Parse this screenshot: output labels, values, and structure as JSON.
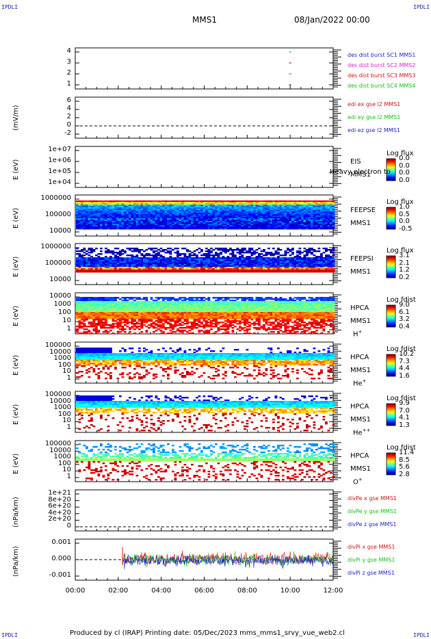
{
  "corner_left": "IPDLI",
  "corner_right": "IPDLI",
  "header": {
    "spacecraft": "MMS1",
    "date": "08/Jan/2022 00:00"
  },
  "footer": {
    "text": "Produced by cl (IRAP)    Printing date: 05/Dec/2023    mms_mms1_srvy_vue_web2.cl"
  },
  "colors": {
    "blue": "#1a1ad0",
    "magenta": "#e020e0",
    "red": "#d01010",
    "green": "#10c010"
  },
  "chart_data": [
    {
      "type": "line",
      "panel": "burst",
      "ylabel": "",
      "yticks": [
        "4",
        "3",
        "2",
        "1"
      ],
      "legend": [
        {
          "name": "des dist burst SC1 MMS1",
          "color": "blue"
        },
        {
          "name": "des dist burst SC2 MMS2",
          "color": "magenta"
        },
        {
          "name": "des dist burst SC3 MMS3",
          "color": "red"
        },
        {
          "name": "des dist burst SC4 MMS4",
          "color": "green"
        }
      ],
      "series": [
        {
          "name": "des dist burst SC4 MMS4",
          "y": 4,
          "x": [
            9.95,
            10.05
          ]
        },
        {
          "name": "des dist burst SC3 MMS3",
          "y": 3,
          "x": [
            9.95,
            10.05
          ]
        },
        {
          "name": "des dist burst SC2 MMS2",
          "y": 2,
          "x": [
            9.95,
            10.05
          ]
        },
        {
          "name": "des dist burst SC1 MMS1",
          "y": 1,
          "x": [
            9.95,
            10.05
          ]
        }
      ]
    },
    {
      "type": "line",
      "panel": "edi",
      "ylabel": "(mV/m)",
      "yticks": [
        "6",
        "4",
        "2",
        "0",
        "-2"
      ],
      "legend": [
        {
          "name": "edi ex gse l2 MMS1",
          "color": "red"
        },
        {
          "name": "edi ey gse l2 MMS1",
          "color": "green"
        },
        {
          "name": "edi ez gse l2 MMS1",
          "color": "blue"
        }
      ]
    },
    {
      "type": "heatmap",
      "panel": "eis",
      "ylabel": "E (eV)",
      "yticks": [
        "1e+07",
        "1e+06",
        "1e+05",
        "1e+04"
      ],
      "labels": [
        "EIS",
        "MMS1"
      ],
      "overlay": "Heavy electron to",
      "colorbar": {
        "title": "Log flux",
        "values": [
          "0.0",
          "0.0",
          "0.0",
          "0.0"
        ]
      }
    },
    {
      "type": "heatmap",
      "panel": "feepse",
      "ylabel": "E (eV)",
      "yticks": [
        "1000000",
        "100000",
        "10000"
      ],
      "labels": [
        "FEEPSE",
        "MMS1"
      ],
      "colorbar": {
        "title": "Log flux",
        "values": [
          "1.0",
          "0.5",
          "0.0",
          "-0.5"
        ]
      }
    },
    {
      "type": "heatmap",
      "panel": "feepsi",
      "ylabel": "E (eV)",
      "yticks": [
        "1000000",
        "100000",
        "10000"
      ],
      "labels": [
        "FEEPSI",
        "MMS1"
      ],
      "colorbar": {
        "title": "Log flux",
        "values": [
          "3.1",
          "2.1",
          "1.2",
          "0.2"
        ]
      }
    },
    {
      "type": "heatmap",
      "panel": "hpca-h",
      "ylabel": "E (eV)",
      "yticks": [
        "10000",
        "1000",
        "100",
        "10",
        "1"
      ],
      "labels": [
        "HPCA",
        "MMS1",
        "H"
      ],
      "species_sup": "+",
      "colorbar": {
        "title": "Log fdist",
        "values": [
          "9.0",
          "6.1",
          "3.2",
          "0.4"
        ]
      }
    },
    {
      "type": "heatmap",
      "panel": "hpca-he",
      "ylabel": "E (eV)",
      "yticks": [
        "100000",
        "10000",
        "1000",
        "100",
        "10",
        "1"
      ],
      "labels": [
        "HPCA",
        "MMS1",
        "He"
      ],
      "species_sup": "+",
      "colorbar": {
        "title": "Log fdist",
        "values": [
          "10.2",
          "7.3",
          "4.4",
          "1.6"
        ]
      }
    },
    {
      "type": "heatmap",
      "panel": "hpca-hepp",
      "ylabel": "E (eV)",
      "yticks": [
        "100000",
        "10000",
        "1000",
        "100",
        "10",
        "1"
      ],
      "labels": [
        "HPCA",
        "MMS1",
        "He"
      ],
      "species_sup": "++",
      "colorbar": {
        "title": "Log fdist",
        "values": [
          "9.9",
          "7.0",
          "4.1",
          "1.3"
        ]
      }
    },
    {
      "type": "heatmap",
      "panel": "hpca-o",
      "ylabel": "E (eV)",
      "yticks": [
        "100000",
        "10000",
        "1000",
        "100",
        "10",
        "1"
      ],
      "labels": [
        "HPCA",
        "MMS1",
        "O"
      ],
      "species_sup": "+",
      "colorbar": {
        "title": "Log fdist",
        "values": [
          "11.4",
          "8.5",
          "5.6",
          "2.8"
        ]
      }
    },
    {
      "type": "line",
      "panel": "divpe",
      "ylabel": "(nPa/km)",
      "yticks": [
        "1e+21",
        "8e+20",
        "6e+20",
        "4e+20",
        "2e+20",
        "0"
      ],
      "legend": [
        {
          "name": "divPe x gse MMS1",
          "color": "red"
        },
        {
          "name": "divPe y gse MMS1",
          "color": "green"
        },
        {
          "name": "divPe z gse MMS1",
          "color": "blue"
        }
      ]
    },
    {
      "type": "line",
      "panel": "divpi",
      "ylabel": "(nPa/km)",
      "yticks": [
        "0.001",
        "0.000",
        "-0.001"
      ],
      "legend": [
        {
          "name": "divPi x gse MMS1",
          "color": "red"
        },
        {
          "name": "divPi y gse MMS1",
          "color": "green"
        },
        {
          "name": "divPi z gse MMS1",
          "color": "blue"
        }
      ]
    }
  ],
  "xaxis": {
    "ticks": [
      "00:00",
      "02:00",
      "04:00",
      "06:00",
      "08:00",
      "10:00",
      "12:00"
    ],
    "range": [
      0,
      12
    ]
  }
}
